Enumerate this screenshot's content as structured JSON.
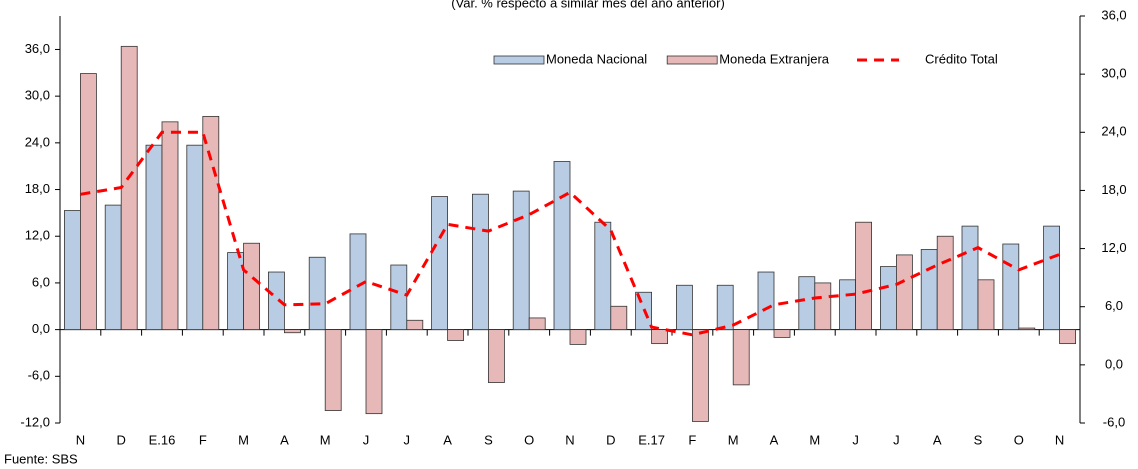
{
  "chart_data": {
    "type": "bar",
    "subtitle": "(Var. % respecto a similar mes del año anterior)",
    "source": "Fuente: SBS",
    "categories": [
      "N",
      "D",
      "E.16",
      "F",
      "M",
      "A",
      "M",
      "J",
      "J",
      "A",
      "S",
      "O",
      "N",
      "D",
      "E.17",
      "F",
      "M",
      "A",
      "M",
      "J",
      "J",
      "A",
      "S",
      "O",
      "N"
    ],
    "series": [
      {
        "name": "Moneda Nacional",
        "color": "#b8cce4",
        "type": "bar",
        "values": [
          15.3,
          16.0,
          23.7,
          23.7,
          9.9,
          7.4,
          9.3,
          12.3,
          8.3,
          17.1,
          17.4,
          17.8,
          21.6,
          13.8,
          4.8,
          5.7,
          5.7,
          7.4,
          6.8,
          6.4,
          8.1,
          10.3,
          13.3,
          11.0,
          13.3
        ]
      },
      {
        "name": "Moneda Extranjera",
        "color": "#e6b9b8",
        "type": "bar",
        "values": [
          32.9,
          36.4,
          26.7,
          27.4,
          11.1,
          -0.4,
          -10.4,
          -10.8,
          1.2,
          -1.4,
          -6.8,
          1.5,
          -1.9,
          3.0,
          -1.8,
          -11.8,
          -7.1,
          -1.0,
          6.0,
          13.8,
          9.6,
          12.0,
          6.4,
          0.2,
          -1.8
        ]
      },
      {
        "name": "Crédito Total",
        "color": "#ff0000",
        "type": "line",
        "axis": "y2",
        "values": [
          17.6,
          18.3,
          24.0,
          24.0,
          9.8,
          6.2,
          6.3,
          8.6,
          7.2,
          14.5,
          13.8,
          15.5,
          17.8,
          13.9,
          3.9,
          3.1,
          4.1,
          6.2,
          6.9,
          7.3,
          8.3,
          10.3,
          12.1,
          9.8,
          11.4
        ]
      }
    ],
    "ylim": [
      -12,
      40.3
    ],
    "yticks": [
      {
        "value": -12,
        "label": "-12,0"
      },
      {
        "value": -6,
        "label": "-6,0"
      },
      {
        "value": 0,
        "label": "0,0"
      },
      {
        "value": 6,
        "label": "6,0"
      },
      {
        "value": 12,
        "label": "12,0"
      },
      {
        "value": 18,
        "label": "18,0"
      },
      {
        "value": 24,
        "label": "24,0"
      },
      {
        "value": 30,
        "label": "30,0"
      },
      {
        "value": 36,
        "label": "36,0"
      }
    ],
    "y2lim": [
      -6,
      36
    ],
    "y2ticks": [
      {
        "value": -6,
        "label": "-6,0"
      },
      {
        "value": 0,
        "label": "0,0"
      },
      {
        "value": 6,
        "label": "6,0"
      },
      {
        "value": 12,
        "label": "12,0"
      },
      {
        "value": 18,
        "label": "18,0"
      },
      {
        "value": 24,
        "label": "24,0"
      },
      {
        "value": 30,
        "label": "30,0"
      },
      {
        "value": 36,
        "label": "36,0"
      }
    ],
    "legend": "top-right"
  }
}
